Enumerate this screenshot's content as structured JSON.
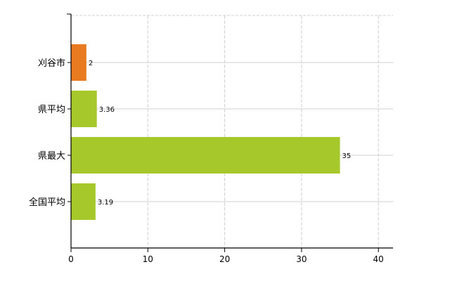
{
  "chart_data": {
    "type": "bar",
    "orientation": "horizontal",
    "categories": [
      "刈谷市",
      "県平均",
      "県最大",
      "全国平均"
    ],
    "values": [
      2,
      3.36,
      35,
      3.19
    ],
    "data_labels": [
      "2",
      "3.36",
      "35",
      "3.19"
    ],
    "bar_colors": [
      "#e87a20",
      "#a6c82a",
      "#a6c82a",
      "#a6c82a"
    ],
    "xlim": [
      0,
      42
    ],
    "x_ticks": [
      0,
      10,
      20,
      30,
      40
    ],
    "x_tick_labels": [
      "0",
      "10",
      "20",
      "30",
      "40"
    ],
    "grid": true,
    "grid_color": "#d0d0d0",
    "title": "",
    "xlabel": "",
    "ylabel": ""
  }
}
